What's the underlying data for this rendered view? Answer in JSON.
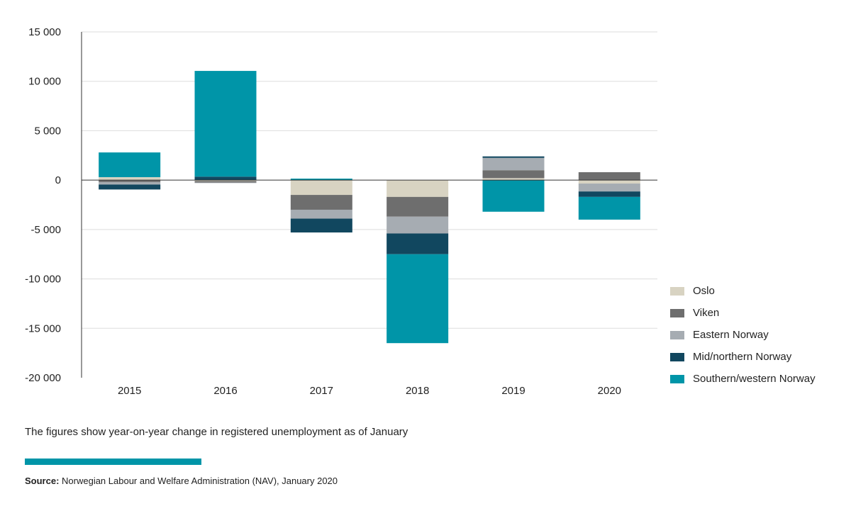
{
  "chart_data": {
    "type": "bar",
    "stacked": true,
    "categories": [
      "2015",
      "2016",
      "2017",
      "2018",
      "2019",
      "2020"
    ],
    "series": [
      {
        "name": "Oslo",
        "color": "#d8d3c2",
        "values": [
          300,
          -100,
          -1500,
          -1700,
          200,
          -350
        ]
      },
      {
        "name": "Viken",
        "color": "#6e6e6e",
        "values": [
          -200,
          -150,
          -1500,
          -2000,
          800,
          800
        ]
      },
      {
        "name": "Eastern Norway",
        "color": "#a6acb2",
        "values": [
          -250,
          -50,
          -900,
          -1700,
          1250,
          -800
        ]
      },
      {
        "name": "Mid/northern Norway",
        "color": "#11475f",
        "values": [
          -500,
          350,
          -1400,
          -2100,
          150,
          -550
        ]
      },
      {
        "name": "Southern/western Norway",
        "color": "#0095a8",
        "values": [
          2500,
          10700,
          150,
          -9000,
          -3200,
          -2300
        ]
      }
    ],
    "ylim": [
      -20000,
      15000
    ],
    "yticks": [
      15000,
      10000,
      5000,
      0,
      -5000,
      -10000,
      -15000,
      -20000
    ],
    "ytick_labels": [
      "15 000",
      "10 000",
      "5 000",
      "0",
      "-5 000",
      "-10 000",
      "-15 000",
      "-20 000"
    ],
    "grid": true,
    "legend_position": "right"
  },
  "note": "The figures show year-on-year change in registered unemployment as of January",
  "source": {
    "label": "Source:",
    "text": " Norwegian Labour and Welfare Administration (NAV), January 2020",
    "bar_color": "#0095a8"
  }
}
